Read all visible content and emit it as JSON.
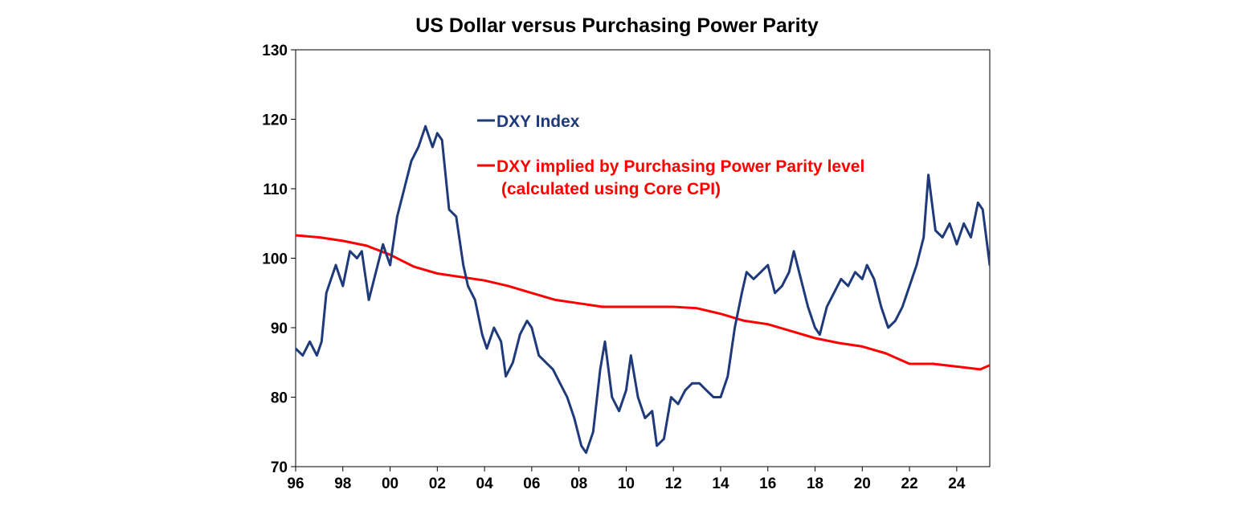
{
  "chart_data": {
    "type": "line",
    "title": "US Dollar versus Purchasing Power Parity",
    "xlabel": "",
    "ylabel": "",
    "ylim": [
      70,
      130
    ],
    "yticks": [
      70,
      80,
      90,
      100,
      110,
      120,
      130
    ],
    "xlim": [
      1996,
      2025.4
    ],
    "xticks": [
      1996,
      1998,
      2000,
      2002,
      2004,
      2006,
      2008,
      2010,
      2012,
      2014,
      2016,
      2018,
      2020,
      2022,
      2024
    ],
    "xtick_labels": [
      "96",
      "98",
      "00",
      "02",
      "04",
      "06",
      "08",
      "10",
      "12",
      "14",
      "16",
      "18",
      "20",
      "22",
      "24"
    ],
    "grid": false,
    "legend_position": "upper-middle",
    "series": [
      {
        "name": "DXY Index",
        "color": "#1f3a7a",
        "legend_lines": [
          "DXY Index"
        ],
        "x": [
          1996.0,
          1996.3,
          1996.6,
          1996.9,
          1997.1,
          1997.3,
          1997.5,
          1997.7,
          1998.0,
          1998.3,
          1998.6,
          1998.8,
          1999.1,
          1999.4,
          1999.7,
          2000.0,
          2000.3,
          2000.6,
          2000.9,
          2001.2,
          2001.5,
          2001.8,
          2002.0,
          2002.2,
          2002.5,
          2002.8,
          2003.1,
          2003.3,
          2003.6,
          2003.9,
          2004.1,
          2004.4,
          2004.7,
          2004.9,
          2005.2,
          2005.5,
          2005.8,
          2006.0,
          2006.3,
          2006.6,
          2006.9,
          2007.2,
          2007.5,
          2007.8,
          2008.1,
          2008.3,
          2008.6,
          2008.9,
          2009.1,
          2009.4,
          2009.7,
          2010.0,
          2010.2,
          2010.5,
          2010.8,
          2011.1,
          2011.3,
          2011.6,
          2011.9,
          2012.2,
          2012.5,
          2012.8,
          2013.1,
          2013.4,
          2013.7,
          2014.0,
          2014.3,
          2014.6,
          2014.9,
          2015.1,
          2015.4,
          2015.7,
          2016.0,
          2016.3,
          2016.6,
          2016.9,
          2017.1,
          2017.4,
          2017.7,
          2018.0,
          2018.2,
          2018.5,
          2018.8,
          2019.1,
          2019.4,
          2019.7,
          2020.0,
          2020.2,
          2020.5,
          2020.8,
          2021.1,
          2021.4,
          2021.7,
          2022.0,
          2022.3,
          2022.6,
          2022.8,
          2023.1,
          2023.4,
          2023.7,
          2024.0,
          2024.3,
          2024.6,
          2024.9,
          2025.1,
          2025.4
        ],
        "values": [
          87,
          86,
          88,
          86,
          88,
          95,
          97,
          99,
          96,
          101,
          100,
          101,
          94,
          98,
          102,
          99,
          106,
          110,
          114,
          116,
          119,
          116,
          118,
          117,
          107,
          106,
          99,
          96,
          94,
          89,
          87,
          90,
          88,
          83,
          85,
          89,
          91,
          90,
          86,
          85,
          84,
          82,
          80,
          77,
          73,
          72,
          75,
          84,
          88,
          80,
          78,
          81,
          86,
          80,
          77,
          78,
          73,
          74,
          80,
          79,
          81,
          82,
          82,
          81,
          80,
          80,
          83,
          90,
          95,
          98,
          97,
          98,
          99,
          95,
          96,
          98,
          101,
          97,
          93,
          90,
          89,
          93,
          95,
          97,
          96,
          98,
          97,
          99,
          97,
          93,
          90,
          91,
          93,
          96,
          99,
          103,
          112,
          104,
          103,
          105,
          102,
          105,
          103,
          108,
          107,
          99
        ]
      },
      {
        "name": "DXY implied by Purchasing Power Parity level",
        "color": "#ff0000",
        "legend_lines": [
          "DXY implied by Purchasing Power Parity level",
          "(calculated using Core CPI)"
        ],
        "x": [
          1996.0,
          1997.0,
          1998.0,
          1999.0,
          2000.0,
          2001.0,
          2002.0,
          2003.0,
          2004.0,
          2005.0,
          2006.0,
          2007.0,
          2008.0,
          2009.0,
          2010.0,
          2011.0,
          2012.0,
          2013.0,
          2014.0,
          2015.0,
          2016.0,
          2017.0,
          2018.0,
          2019.0,
          2020.0,
          2021.0,
          2022.0,
          2023.0,
          2024.0,
          2025.0,
          2025.4
        ],
        "values": [
          103.3,
          103.0,
          102.5,
          101.8,
          100.5,
          98.8,
          97.8,
          97.3,
          96.8,
          96.0,
          95.0,
          94.0,
          93.5,
          93.0,
          93.0,
          93.0,
          93.0,
          92.8,
          92.0,
          91.0,
          90.5,
          89.5,
          88.5,
          87.8,
          87.3,
          86.3,
          84.8,
          84.8,
          84.4,
          84.0,
          84.6
        ]
      }
    ]
  }
}
